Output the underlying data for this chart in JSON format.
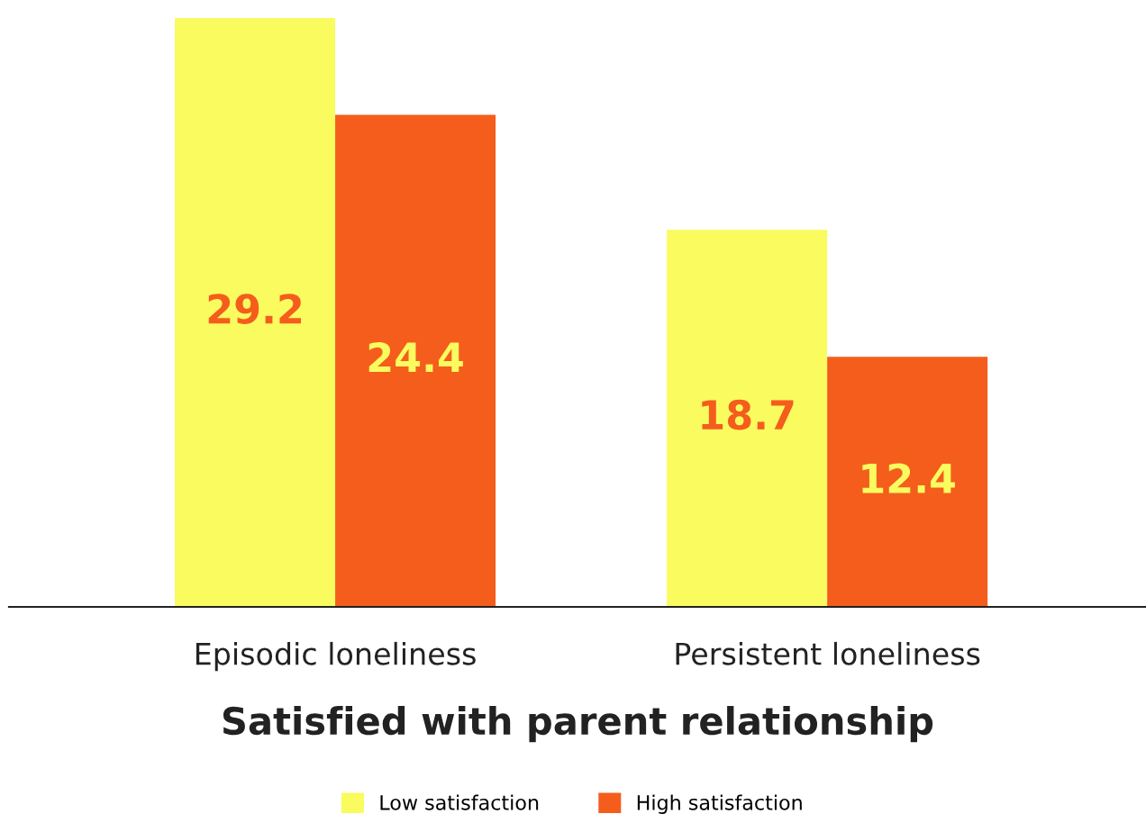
{
  "chart_data": {
    "type": "bar",
    "xlabel": "Satisfied with parent relationship",
    "categories": [
      "Episodic loneliness",
      "Persistent loneliness"
    ],
    "series": [
      {
        "name": "Low satisfaction",
        "color": "#f9fb5f",
        "values": [
          29.2,
          18.7
        ]
      },
      {
        "name": "High satisfaction",
        "color": "#f55d1c",
        "values": [
          24.4,
          12.4
        ]
      }
    ],
    "data_labels": true,
    "legend": "bottom",
    "grid": false
  }
}
